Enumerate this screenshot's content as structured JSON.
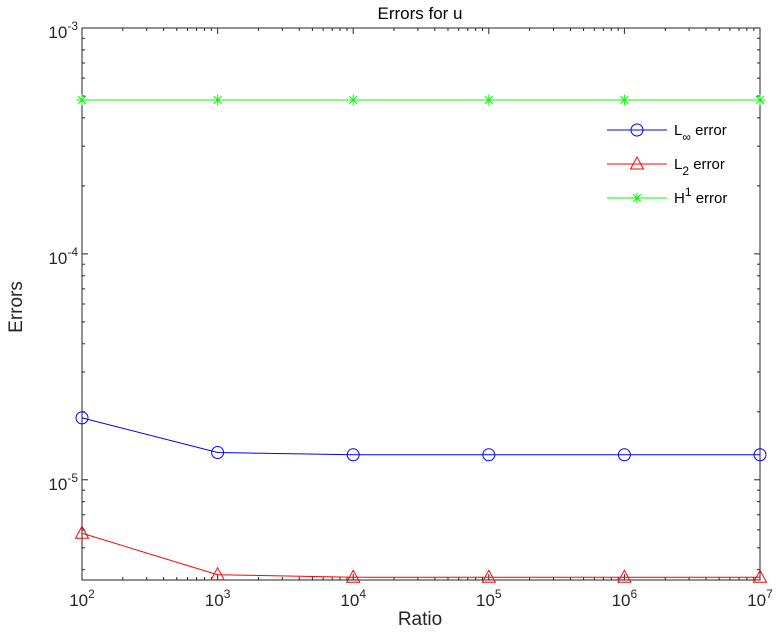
{
  "chart_data": {
    "type": "line",
    "title": "Errors for u",
    "xlabel": "Ratio",
    "ylabel": "Errors",
    "x_scale": "log",
    "y_scale": "log",
    "x": [
      100,
      1000,
      10000,
      100000,
      1000000,
      10000000
    ],
    "xlim": [
      100,
      10000000
    ],
    "ylim": [
      3.6e-06,
      0.001
    ],
    "x_ticks": [
      {
        "base": "10",
        "exp": "2"
      },
      {
        "base": "10",
        "exp": "3"
      },
      {
        "base": "10",
        "exp": "4"
      },
      {
        "base": "10",
        "exp": "5"
      },
      {
        "base": "10",
        "exp": "6"
      },
      {
        "base": "10",
        "exp": "7"
      }
    ],
    "y_ticks": [
      {
        "value": 1e-05,
        "base": "10",
        "exp": "-5"
      },
      {
        "value": 0.0001,
        "base": "10",
        "exp": "-4"
      },
      {
        "value": 0.001,
        "base": "10",
        "exp": "-3"
      }
    ],
    "grid": false,
    "legend_position": "top-right",
    "series": [
      {
        "key": "linf",
        "legend_main": "L",
        "legend_sub": "∞",
        "legend_rest": " error",
        "color": "#0000ff",
        "marker": "circle",
        "values": [
          1.88e-05,
          1.32e-05,
          1.29e-05,
          1.29e-05,
          1.29e-05,
          1.29e-05
        ]
      },
      {
        "key": "l2",
        "legend_main": "L",
        "legend_sub": "2",
        "legend_rest": " error",
        "color": "#ff0000",
        "marker": "triangle",
        "values": [
          5.8e-06,
          3.8e-06,
          3.7e-06,
          3.7e-06,
          3.7e-06,
          3.7e-06
        ]
      },
      {
        "key": "h1",
        "legend_main": "H",
        "legend_sup": "1",
        "legend_rest": " error",
        "color": "#00ff00",
        "marker": "asterisk",
        "values": [
          0.00048,
          0.00048,
          0.00048,
          0.00048,
          0.00048,
          0.00048
        ]
      }
    ]
  }
}
